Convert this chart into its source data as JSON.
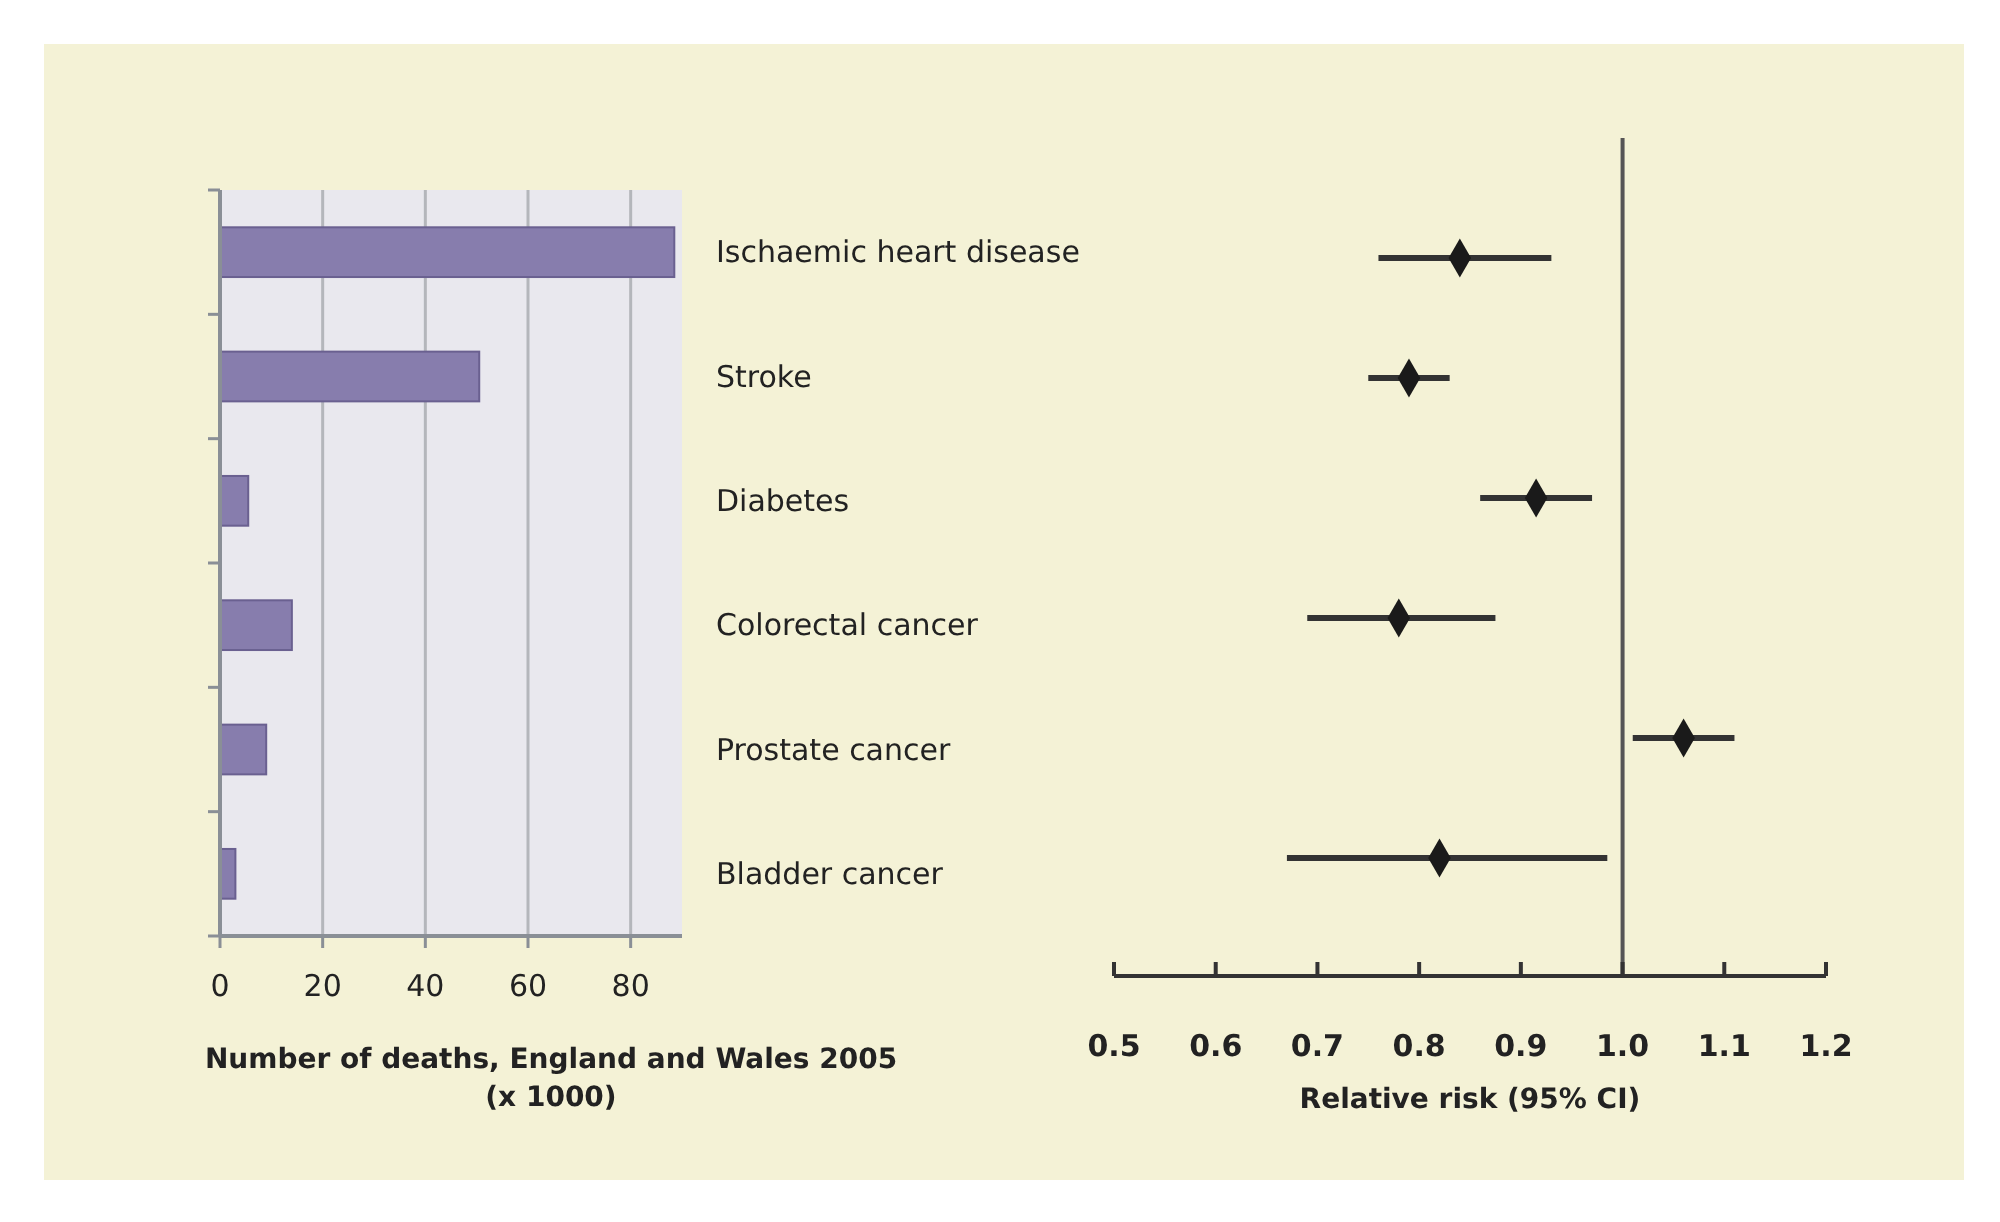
{
  "chart_data": [
    {
      "type": "bar",
      "orientation": "horizontal",
      "categories": [
        "Ischaemic heart disease",
        "Stroke",
        "Diabetes",
        "Colorectal cancer",
        "Prostate cancer",
        "Bladder cancer"
      ],
      "values": [
        88.5,
        50.5,
        5.5,
        14,
        9,
        3
      ],
      "color": "#877dad",
      "xlim": [
        0,
        90
      ],
      "xticks": [
        0,
        20,
        40,
        60,
        80
      ],
      "grid": "x",
      "xlabel": "Number of deaths, England and Wales 2005 (x 1000)"
    },
    {
      "type": "scatter",
      "orientation": "horizontal",
      "categories": [
        null,
        null,
        null,
        null,
        null,
        null
      ],
      "values": [
        0.84,
        0.79,
        0.915,
        0.78,
        1.06,
        0.82
      ],
      "errors": [
        [
          0.76,
          0.93
        ],
        [
          0.75,
          0.83
        ],
        [
          0.86,
          0.97
        ],
        [
          0.69,
          0.875
        ],
        [
          1.01,
          1.11
        ],
        [
          0.67,
          0.985
        ]
      ],
      "color": "#1a1a1a",
      "marker": "diamond",
      "xlim": [
        0.5,
        1.2
      ],
      "xticks": [
        0.5,
        0.6,
        0.7,
        0.8,
        0.9,
        {
          "value": 1,
          "label": "1.0"
        },
        1.1,
        1.2
      ],
      "ref_lines": [
        {
          "axis": "x",
          "value": 1
        }
      ],
      "xlabel": "Relative risk (95% CI)"
    }
  ]
}
